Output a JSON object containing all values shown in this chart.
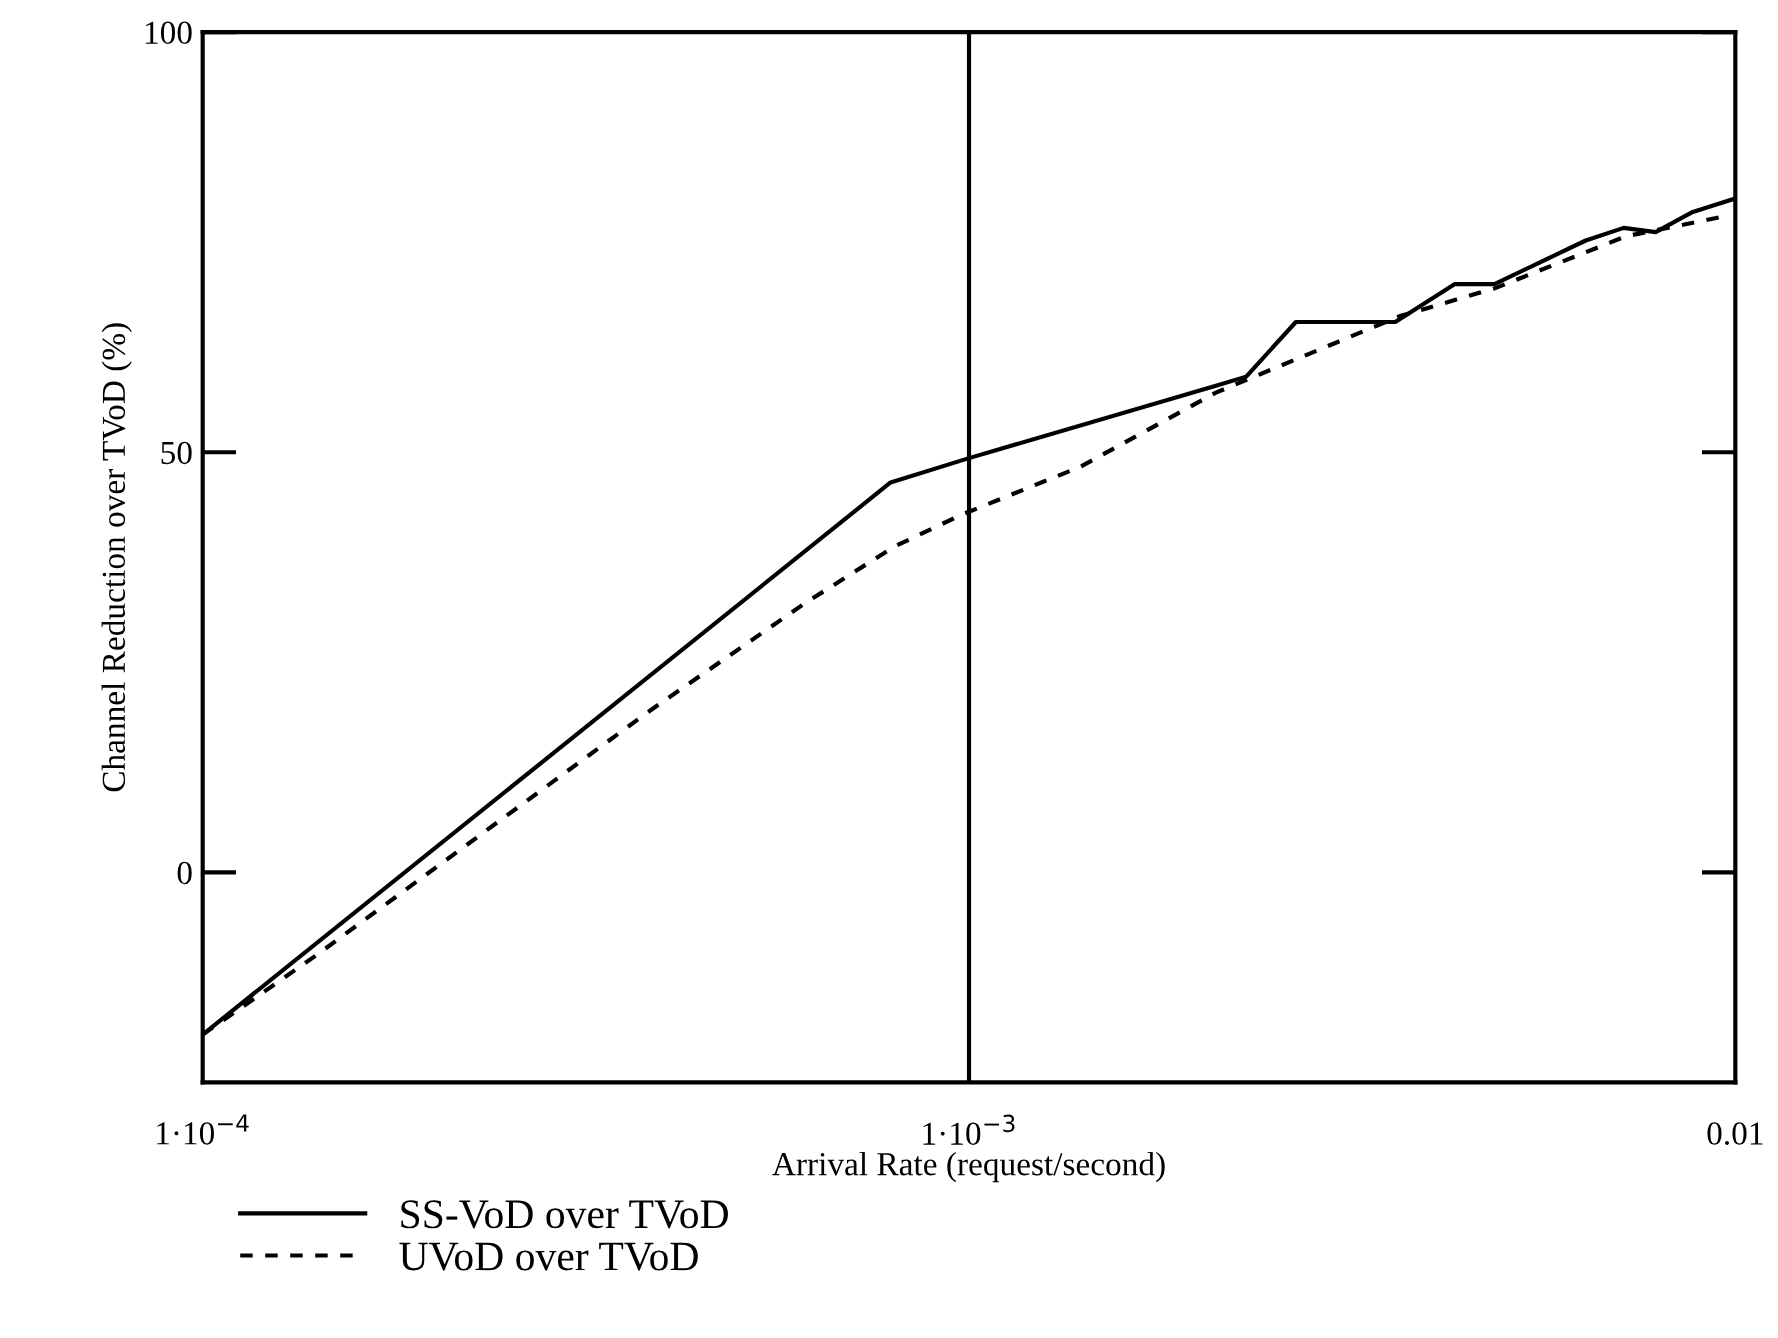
{
  "chart_data": {
    "type": "line",
    "xlabel": "Arrival Rate (request/second)",
    "ylabel": "Channel Reduction over TVoD (%)",
    "log": "x",
    "xlim": [
      0.0001,
      0.01
    ],
    "xticks": [
      {
        "value": 0.0001,
        "label": "1·10$^{−4}$"
      },
      {
        "value": 0.001,
        "label": "1·10$^{−3}$"
      },
      0.01
    ],
    "ylim": [
      -25,
      100
    ],
    "yticks": [
      0,
      50,
      100
    ],
    "grid": false,
    "legend": "bottom left",
    "ref_lines": [
      {
        "axis": "x",
        "value": 0.001,
        "color": "#000000",
        "line_style": "solid"
      }
    ],
    "series": [
      {
        "name": "SS-VoD over TVoD",
        "color": "#000000",
        "line_style": "solid",
        "x": [
          0.0001,
          0.00079,
          0.001,
          0.0021,
          0.0023,
          0.00267,
          0.0036,
          0.0043,
          0.00485,
          0.00556,
          0.00638,
          0.00715,
          0.00787,
          0.0088,
          0.01
        ],
        "values": [
          -19.3,
          46.4,
          49.3,
          57.9,
          59,
          65.5,
          65.5,
          70,
          70,
          72.6,
          75.2,
          76.7,
          76.2,
          78.6,
          80.2
        ]
      },
      {
        "name": "UVoD over TVoD",
        "color": "#000000",
        "line_style": "dashed",
        "x": [
          0.0001,
          0.00014,
          0.00038,
          0.00061,
          0.0008,
          0.00098,
          0.0014,
          0.0021,
          0.00365,
          0.00485,
          0.0072,
          0.0097
        ],
        "values": [
          -19.3,
          -10,
          19,
          32,
          38.8,
          42.6,
          48.3,
          57.1,
          66.2,
          69.5,
          75.7,
          78.1
        ]
      }
    ]
  }
}
